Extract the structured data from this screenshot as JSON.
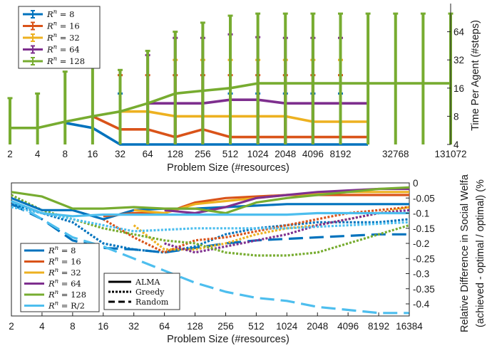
{
  "colors": {
    "s8": "#0072BD",
    "s16": "#D95319",
    "s32": "#EDB120",
    "s64": "#7E2F8E",
    "s128": "#77AC30",
    "sR2": "#4DBEEE"
  },
  "chart_data": [
    {
      "type": "line",
      "xscale": "log2",
      "yscale": "log2",
      "xlabel": "Problem Size (#resources)",
      "ylabel": "Time Per Agent (#steps)",
      "y_axis_side": "right",
      "xlim": [
        2,
        131072
      ],
      "ylim": [
        4,
        128
      ],
      "x_ticks": [
        "2",
        "4",
        "8",
        "16",
        "32",
        "64",
        "128",
        "256",
        "512",
        "1024",
        "2048",
        "4096",
        "8192",
        "32768",
        "131072"
      ],
      "y_ticks": [
        "4",
        "8",
        "16",
        "32",
        "64"
      ],
      "legend_position": "top-left",
      "error_bars": true,
      "series": [
        {
          "name": "R^n = 8",
          "color_key": "s8",
          "x": [
            8,
            16,
            32,
            64,
            128,
            256,
            512,
            1024,
            2048,
            4096,
            8192,
            16384
          ],
          "y": [
            6.8,
            6.0,
            4.0,
            4.0,
            4.0,
            4.0,
            4.0,
            4.0,
            4.0,
            4.0,
            4.0,
            4.0
          ],
          "err_hi": [
            null,
            null,
            14,
            null,
            null,
            null,
            14,
            14,
            14,
            14,
            14,
            null
          ]
        },
        {
          "name": "R^n = 16",
          "color_key": "s16",
          "x": [
            16,
            32,
            64,
            128,
            256,
            512,
            1024,
            2048,
            4096,
            8192,
            16384
          ],
          "y": [
            8,
            5.8,
            5.8,
            4.8,
            5.8,
            4.8,
            4.8,
            4.8,
            4.8,
            4.8,
            4.8
          ],
          "err_hi": [
            null,
            22,
            22,
            22,
            22,
            22,
            22,
            22,
            22,
            22,
            null
          ]
        },
        {
          "name": "R^n = 32",
          "color_key": "s32",
          "x": [
            32,
            64,
            128,
            256,
            512,
            1024,
            2048,
            4096,
            8192,
            16384
          ],
          "y": [
            9,
            9,
            8,
            8,
            8,
            8,
            8,
            7,
            7,
            7
          ],
          "err_hi": [
            null,
            null,
            32,
            32,
            32,
            32,
            32,
            32,
            32,
            null
          ]
        },
        {
          "name": "R^n = 64",
          "color_key": "s64",
          "x": [
            64,
            128,
            256,
            512,
            1024,
            2048,
            4096,
            8192,
            16384
          ],
          "y": [
            11,
            11,
            11,
            12,
            12,
            11,
            11,
            11,
            11
          ],
          "err_hi": [
            36,
            55,
            55,
            60,
            56,
            55,
            55,
            55,
            null
          ]
        },
        {
          "name": "R^n = 128",
          "color_key": "s128",
          "x": [
            2,
            4,
            8,
            16,
            32,
            64,
            128,
            256,
            512,
            1024,
            2048,
            4096,
            8192,
            16384,
            32768,
            65536,
            131072
          ],
          "y": [
            6,
            6,
            7,
            8,
            9,
            11,
            14,
            15,
            16,
            18,
            18,
            18,
            18,
            18,
            18,
            18,
            18
          ],
          "err_hi": [
            12.5,
            14,
            24,
            32,
            25,
            40,
            64,
            80,
            95,
            100,
            100,
            100,
            100,
            100,
            100,
            100,
            100
          ]
        }
      ]
    },
    {
      "type": "line",
      "xscale": "log2",
      "xlabel": "Problem Size (#resources)",
      "ylabel": "Relative Difference in Social Welfa (achieved - optimal / optimal) (%",
      "y_axis_side": "right",
      "xlim": [
        2,
        16384
      ],
      "ylim": [
        -0.44,
        0
      ],
      "x_ticks": [
        "2",
        "4",
        "8",
        "16",
        "32",
        "64",
        "128",
        "256",
        "512",
        "1024",
        "2048",
        "4096",
        "8192",
        "16384"
      ],
      "y_ticks": [
        "0",
        "-0.05",
        "-0.1",
        "-0.15",
        "-0.2",
        "-0.25",
        "-0.3",
        "-0.35",
        "-0.4"
      ],
      "legend_position": "bottom-left",
      "style_legend": [
        "ALMA",
        "Greedy",
        "Random"
      ],
      "x": [
        2,
        4,
        8,
        16,
        32,
        64,
        128,
        256,
        512,
        1024,
        2048,
        4096,
        8192,
        16384
      ],
      "series": [
        {
          "name": "R^n = 8",
          "color_key": "s8",
          "ALMA": [
            -0.05,
            -0.09,
            -0.09,
            -0.12,
            -0.09,
            -0.085,
            -0.085,
            -0.08,
            -0.075,
            -0.07,
            -0.07,
            -0.07,
            -0.07,
            -0.07
          ],
          "Greedy": [
            -0.07,
            -0.1,
            -0.13,
            -0.2,
            -0.22,
            -0.23,
            -0.21,
            -0.17,
            -0.15,
            -0.14,
            -0.13,
            -0.13,
            -0.13,
            -0.12
          ],
          "Random": [
            -0.07,
            -0.12,
            -0.19,
            -0.215,
            -0.22,
            -0.23,
            -0.215,
            -0.2,
            -0.19,
            -0.185,
            -0.18,
            -0.175,
            -0.17,
            -0.17
          ]
        },
        {
          "name": "R^n = 16",
          "color_key": "s16",
          "ALMA": [
            null,
            null,
            null,
            -0.11,
            -0.1,
            -0.1,
            -0.065,
            -0.05,
            -0.045,
            -0.04,
            -0.04,
            -0.04,
            -0.04,
            -0.04
          ],
          "Greedy": [
            null,
            null,
            null,
            -0.12,
            -0.18,
            -0.23,
            -0.19,
            -0.18,
            -0.16,
            -0.14,
            -0.12,
            -0.1,
            -0.09,
            -0.08
          ],
          "Random": []
        },
        {
          "name": "R^n = 32",
          "color_key": "s32",
          "ALMA": [
            null,
            null,
            null,
            null,
            -0.09,
            -0.1,
            -0.07,
            -0.06,
            -0.05,
            -0.04,
            -0.035,
            -0.03,
            -0.03,
            -0.03
          ],
          "Greedy": [
            null,
            null,
            null,
            null,
            -0.14,
            -0.22,
            -0.22,
            -0.2,
            -0.17,
            -0.15,
            -0.14,
            -0.12,
            -0.1,
            -0.08
          ],
          "Random": []
        },
        {
          "name": "R^n = 64",
          "color_key": "s64",
          "ALMA": [
            null,
            null,
            null,
            null,
            null,
            -0.09,
            -0.1,
            -0.08,
            -0.05,
            -0.04,
            -0.03,
            -0.025,
            -0.02,
            -0.02
          ],
          "Greedy": [
            null,
            null,
            null,
            null,
            null,
            -0.2,
            -0.23,
            -0.21,
            -0.19,
            -0.17,
            -0.14,
            -0.12,
            -0.1,
            -0.09
          ],
          "Random": []
        },
        {
          "name": "R^n = 128",
          "color_key": "s128",
          "ALMA": [
            -0.03,
            -0.045,
            -0.085,
            -0.085,
            -0.08,
            -0.085,
            -0.085,
            -0.1,
            -0.065,
            -0.05,
            -0.04,
            -0.03,
            -0.02,
            -0.015
          ],
          "Greedy": [
            -0.04,
            -0.09,
            -0.12,
            -0.15,
            -0.17,
            -0.19,
            -0.2,
            -0.23,
            -0.24,
            -0.24,
            -0.23,
            -0.2,
            -0.17,
            -0.14
          ],
          "Random": []
        },
        {
          "name": "R^n = R/2",
          "color_key": "sR2",
          "ALMA": [
            -0.06,
            -0.1,
            -0.11,
            -0.105,
            -0.105,
            -0.105,
            -0.105,
            -0.105,
            -0.105,
            -0.105,
            -0.1,
            -0.1,
            -0.1,
            -0.1
          ],
          "Greedy": [
            -0.08,
            -0.1,
            -0.12,
            -0.14,
            -0.16,
            -0.155,
            -0.15,
            -0.15,
            -0.15,
            -0.15,
            -0.145,
            -0.14,
            -0.135,
            -0.13
          ],
          "Random": [
            -0.06,
            -0.12,
            -0.18,
            -0.21,
            -0.25,
            -0.29,
            -0.33,
            -0.36,
            -0.38,
            -0.39,
            -0.41,
            -0.42,
            -0.43,
            -0.43
          ]
        }
      ]
    }
  ],
  "legend_top": [
    {
      "base": "R",
      "sup": "n",
      "rest": " = 8",
      "color_key": "s8"
    },
    {
      "base": "R",
      "sup": "n",
      "rest": " = 16",
      "color_key": "s16"
    },
    {
      "base": "R",
      "sup": "n",
      "rest": " = 32",
      "color_key": "s32"
    },
    {
      "base": "R",
      "sup": "n",
      "rest": " = 64",
      "color_key": "s64"
    },
    {
      "base": "R",
      "sup": "n",
      "rest": " = 128",
      "color_key": "s128"
    }
  ],
  "legend_bottom": [
    {
      "base": "R",
      "sup": "n",
      "rest": " = 8",
      "color_key": "s8"
    },
    {
      "base": "R",
      "sup": "n",
      "rest": " = 16",
      "color_key": "s16"
    },
    {
      "base": "R",
      "sup": "n",
      "rest": " = 32",
      "color_key": "s32"
    },
    {
      "base": "R",
      "sup": "n",
      "rest": " = 64",
      "color_key": "s64"
    },
    {
      "base": "R",
      "sup": "n",
      "rest": " = 128",
      "color_key": "s128"
    },
    {
      "base": "R",
      "sup": "n",
      "rest": " = R/2",
      "color_key": "sR2"
    }
  ],
  "style_legend": [
    {
      "label": "ALMA",
      "dash": "solid"
    },
    {
      "label": "Greedy",
      "dash": "dotted"
    },
    {
      "label": "Random",
      "dash": "dashed"
    }
  ]
}
